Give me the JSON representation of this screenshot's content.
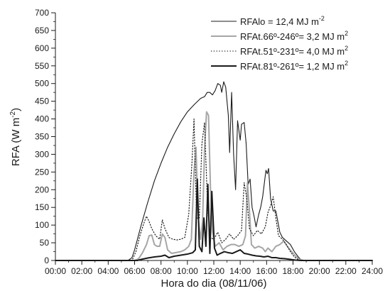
{
  "chart_data": {
    "type": "line",
    "xlabel": "Hora do dia (08/11/06)",
    "ylabel_main": "RFA (W m",
    "ylabel_sup": "-2",
    "ylabel_end": ")",
    "xlim": [
      0,
      24
    ],
    "ylim": [
      0,
      700
    ],
    "x_ticks": [
      0,
      2,
      4,
      6,
      8,
      10,
      12,
      14,
      16,
      18,
      20,
      22,
      24
    ],
    "x_tick_labels": [
      "00:00",
      "02:00",
      "04:00",
      "06:00",
      "08:00",
      "10:00",
      "12:00",
      "14:00",
      "16:00",
      "18:00",
      "20:00",
      "22:00",
      "24:00"
    ],
    "y_ticks": [
      0,
      50,
      100,
      150,
      200,
      250,
      300,
      350,
      400,
      450,
      500,
      550,
      600,
      650,
      700
    ],
    "y_tick_labels": [
      "0",
      "50",
      "100",
      "150",
      "200",
      "250",
      "300",
      "350",
      "400",
      "450",
      "500",
      "550",
      "600",
      "650",
      "700"
    ],
    "grid": false,
    "legend_position": "top-right",
    "series": [
      {
        "name": "RFAlo = 12,4 MJ m",
        "name_sup": "-2",
        "style": "solid-thin",
        "color": "#1a1a1a",
        "points": [
          [
            0,
            0
          ],
          [
            5.5,
            0
          ],
          [
            5.8,
            8
          ],
          [
            6,
            30
          ],
          [
            6.5,
            100
          ],
          [
            7,
            165
          ],
          [
            7.5,
            225
          ],
          [
            8,
            275
          ],
          [
            8.5,
            320
          ],
          [
            9,
            358
          ],
          [
            9.5,
            392
          ],
          [
            10,
            420
          ],
          [
            10.5,
            440
          ],
          [
            11,
            458
          ],
          [
            11.3,
            463
          ],
          [
            11.5,
            475
          ],
          [
            11.7,
            475
          ],
          [
            11.9,
            468
          ],
          [
            12.1,
            480
          ],
          [
            12.3,
            500
          ],
          [
            12.5,
            495
          ],
          [
            12.6,
            475
          ],
          [
            12.75,
            505
          ],
          [
            12.9,
            490
          ],
          [
            13.1,
            410
          ],
          [
            13.2,
            305
          ],
          [
            13.35,
            475
          ],
          [
            13.5,
            300
          ],
          [
            13.65,
            200
          ],
          [
            13.8,
            395
          ],
          [
            14,
            340
          ],
          [
            14.1,
            385
          ],
          [
            14.3,
            390
          ],
          [
            14.45,
            330
          ],
          [
            14.6,
            215
          ],
          [
            14.75,
            230
          ],
          [
            14.9,
            150
          ],
          [
            15.05,
            125
          ],
          [
            15.2,
            95
          ],
          [
            15.4,
            130
          ],
          [
            15.55,
            150
          ],
          [
            15.7,
            180
          ],
          [
            15.85,
            225
          ],
          [
            15.95,
            255
          ],
          [
            16.05,
            245
          ],
          [
            16.15,
            260
          ],
          [
            16.3,
            175
          ],
          [
            16.5,
            140
          ],
          [
            16.7,
            140
          ],
          [
            16.85,
            110
          ],
          [
            17,
            80
          ],
          [
            17.2,
            65
          ],
          [
            17.5,
            55
          ],
          [
            17.8,
            45
          ],
          [
            18.1,
            25
          ],
          [
            18.4,
            10
          ],
          [
            18.6,
            2
          ],
          [
            18.8,
            0
          ],
          [
            24,
            0
          ]
        ]
      },
      {
        "name": "RFAt.66º-246º= 3,2 MJ m",
        "name_sup": "2",
        "style": "solid-gray",
        "color": "#a6a6a6",
        "points": [
          [
            0,
            0
          ],
          [
            6,
            0
          ],
          [
            6.3,
            5
          ],
          [
            6.6,
            22
          ],
          [
            6.9,
            45
          ],
          [
            7.1,
            70
          ],
          [
            7.3,
            72
          ],
          [
            7.5,
            45
          ],
          [
            7.7,
            40
          ],
          [
            7.9,
            40
          ],
          [
            8.1,
            75
          ],
          [
            8.3,
            65
          ],
          [
            8.5,
            30
          ],
          [
            8.8,
            20
          ],
          [
            9.1,
            22
          ],
          [
            9.5,
            25
          ],
          [
            9.8,
            30
          ],
          [
            10.1,
            40
          ],
          [
            10.3,
            60
          ],
          [
            10.5,
            250
          ],
          [
            10.65,
            320
          ],
          [
            10.8,
            130
          ],
          [
            11,
            60
          ],
          [
            11.15,
            110
          ],
          [
            11.3,
            315
          ],
          [
            11.45,
            420
          ],
          [
            11.6,
            410
          ],
          [
            11.75,
            200
          ],
          [
            11.9,
            80
          ],
          [
            12.1,
            40
          ],
          [
            12.4,
            50
          ],
          [
            12.7,
            30
          ],
          [
            13,
            40
          ],
          [
            13.3,
            45
          ],
          [
            13.6,
            45
          ],
          [
            13.9,
            40
          ],
          [
            14.2,
            45
          ],
          [
            14.4,
            70
          ],
          [
            14.55,
            220
          ],
          [
            14.7,
            140
          ],
          [
            14.85,
            45
          ],
          [
            15.1,
            35
          ],
          [
            15.4,
            40
          ],
          [
            15.7,
            35
          ],
          [
            15.9,
            25
          ],
          [
            16.1,
            35
          ],
          [
            16.4,
            25
          ],
          [
            16.7,
            40
          ],
          [
            17,
            45
          ],
          [
            17.3,
            55
          ],
          [
            17.6,
            38
          ],
          [
            17.9,
            25
          ],
          [
            18.2,
            12
          ],
          [
            18.5,
            3
          ],
          [
            18.8,
            0
          ],
          [
            24,
            0
          ]
        ]
      },
      {
        "name": "RFAt.51º-231º= 4,0 MJ m",
        "name_sup": "2",
        "style": "dotted",
        "color": "#1a1a1a",
        "points": [
          [
            0,
            0
          ],
          [
            5.8,
            0
          ],
          [
            6.1,
            25
          ],
          [
            6.4,
            70
          ],
          [
            6.7,
            105
          ],
          [
            6.9,
            125
          ],
          [
            7.1,
            110
          ],
          [
            7.3,
            90
          ],
          [
            7.6,
            70
          ],
          [
            7.9,
            60
          ],
          [
            8.1,
            115
          ],
          [
            8.3,
            90
          ],
          [
            8.6,
            65
          ],
          [
            8.9,
            60
          ],
          [
            9.2,
            58
          ],
          [
            9.5,
            60
          ],
          [
            9.8,
            65
          ],
          [
            10.1,
            130
          ],
          [
            10.35,
            280
          ],
          [
            10.5,
            400
          ],
          [
            10.7,
            120
          ],
          [
            10.9,
            120
          ],
          [
            11.1,
            330
          ],
          [
            11.3,
            390
          ],
          [
            11.5,
            180
          ],
          [
            11.7,
            65
          ],
          [
            12,
            60
          ],
          [
            12.3,
            80
          ],
          [
            12.6,
            50
          ],
          [
            12.9,
            60
          ],
          [
            13.2,
            75
          ],
          [
            13.5,
            60
          ],
          [
            13.8,
            70
          ],
          [
            14.1,
            85
          ],
          [
            14.3,
            220
          ],
          [
            14.5,
            175
          ],
          [
            14.7,
            90
          ],
          [
            15,
            70
          ],
          [
            15.3,
            85
          ],
          [
            15.6,
            75
          ],
          [
            15.9,
            95
          ],
          [
            16.1,
            135
          ],
          [
            16.3,
            155
          ],
          [
            16.5,
            180
          ],
          [
            16.7,
            120
          ],
          [
            16.9,
            70
          ],
          [
            17.2,
            60
          ],
          [
            17.5,
            45
          ],
          [
            17.8,
            25
          ],
          [
            18.1,
            10
          ],
          [
            18.4,
            2
          ],
          [
            18.6,
            0
          ],
          [
            24,
            0
          ]
        ]
      },
      {
        "name": "RFAt.81º-261º= 1,2 MJ m",
        "name_sup": "2",
        "style": "solid-thick",
        "color": "#1a1a1a",
        "points": [
          [
            0,
            0
          ],
          [
            6.2,
            0
          ],
          [
            6.5,
            3
          ],
          [
            7,
            7
          ],
          [
            7.5,
            10
          ],
          [
            8,
            12
          ],
          [
            8.3,
            15
          ],
          [
            8.6,
            8
          ],
          [
            9,
            12
          ],
          [
            9.5,
            15
          ],
          [
            10,
            18
          ],
          [
            10.4,
            22
          ],
          [
            10.6,
            30
          ],
          [
            10.75,
            230
          ],
          [
            10.9,
            40
          ],
          [
            11.1,
            25
          ],
          [
            11.25,
            120
          ],
          [
            11.4,
            40
          ],
          [
            11.55,
            215
          ],
          [
            11.7,
            20
          ],
          [
            11.85,
            195
          ],
          [
            12.05,
            35
          ],
          [
            12.25,
            15
          ],
          [
            12.5,
            20
          ],
          [
            12.8,
            25
          ],
          [
            13.1,
            22
          ],
          [
            13.4,
            20
          ],
          [
            13.7,
            25
          ],
          [
            14,
            30
          ],
          [
            14.3,
            20
          ],
          [
            14.6,
            18
          ],
          [
            14.9,
            15
          ],
          [
            15.2,
            13
          ],
          [
            15.5,
            12
          ],
          [
            15.8,
            10
          ],
          [
            16.1,
            12
          ],
          [
            16.4,
            8
          ],
          [
            16.7,
            8
          ],
          [
            17,
            6
          ],
          [
            17.4,
            5
          ],
          [
            17.8,
            3
          ],
          [
            18.2,
            1
          ],
          [
            18.6,
            0
          ],
          [
            24,
            0
          ]
        ]
      }
    ]
  }
}
